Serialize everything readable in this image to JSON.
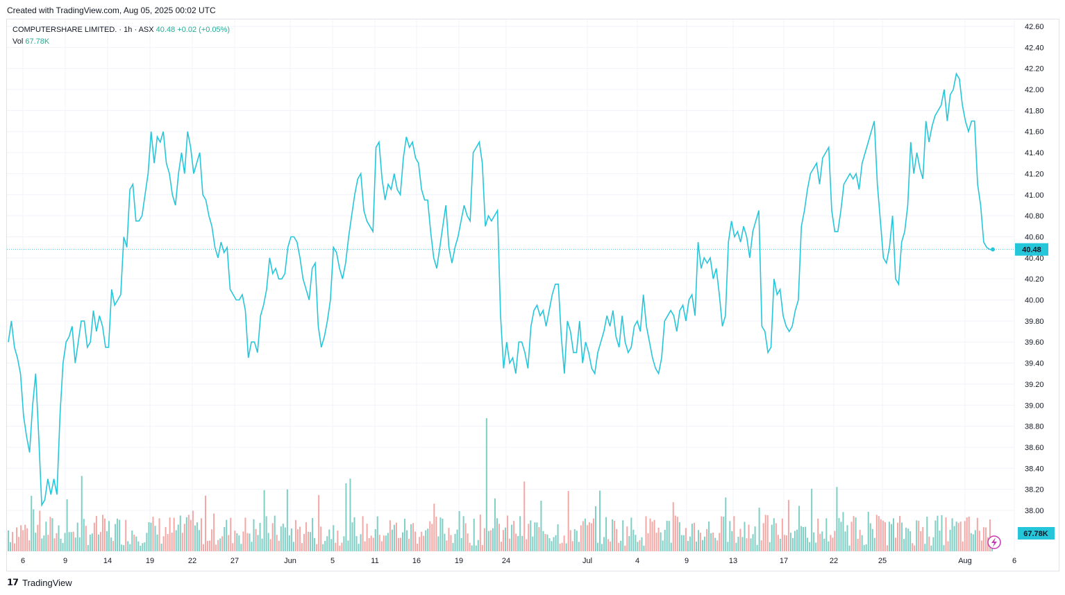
{
  "header": {
    "created_text": "Created with TradingView.com, Aug 05, 2025 00:02 UTC"
  },
  "legend": {
    "symbol": "COMPUTERSHARE LIMITED.",
    "interval": "1h",
    "exchange": "ASX",
    "price": "40.48",
    "change": "+0.02 (+0.05%)",
    "vol_label": "Vol",
    "vol_value": "67.78K"
  },
  "footer": {
    "brand": "TradingView"
  },
  "colors": {
    "line": "#26c6da",
    "up_vol": "#7fcfc5",
    "down_vol": "#f4a8a6",
    "grid": "#f0f3fa",
    "price_tag": "#26c6da"
  },
  "chart_data": {
    "type": "line",
    "title": "COMPUTERSHARE LIMITED. · 1h · ASX",
    "x_ticks": [
      "6",
      "9",
      "14",
      "19",
      "22",
      "27",
      "Jun",
      "5",
      "11",
      "16",
      "19",
      "24",
      "Jul",
      "4",
      "9",
      "13",
      "17",
      "22",
      "25",
      "Aug",
      "6"
    ],
    "y_ticks": [
      "42.60",
      "42.40",
      "42.20",
      "42.00",
      "41.80",
      "41.60",
      "41.40",
      "41.20",
      "41.00",
      "40.80",
      "40.60",
      "40.40",
      "40.20",
      "40.00",
      "39.80",
      "39.60",
      "39.40",
      "39.20",
      "39.00",
      "38.80",
      "38.60",
      "38.40",
      "38.20",
      "38.00"
    ],
    "ylim": [
      37.95,
      42.65
    ],
    "last_price": 40.48,
    "last_price_label": "40.48",
    "last_volume_label": "67.78K",
    "series": [
      {
        "values": [
          39.6,
          39.8,
          39.55,
          39.45,
          39.3,
          38.9,
          38.7,
          38.55,
          39.0,
          39.3,
          38.7,
          38.05,
          38.1,
          38.3,
          38.15,
          38.3,
          38.15,
          38.9,
          39.4,
          39.6,
          39.65,
          39.75,
          39.4,
          39.6,
          39.8,
          39.8,
          39.55,
          39.6,
          39.9,
          39.7,
          39.85,
          39.75,
          39.55,
          39.55,
          40.1,
          39.95,
          40.0,
          40.05,
          40.6,
          40.5,
          41.05,
          41.1,
          40.75,
          40.75,
          40.8,
          41.0,
          41.2,
          41.6,
          41.3,
          41.55,
          41.5,
          41.6,
          41.3,
          41.2,
          41.0,
          40.9,
          41.2,
          41.4,
          41.2,
          41.6,
          41.45,
          41.2,
          41.3,
          41.4,
          41.0,
          40.95,
          40.8,
          40.7,
          40.5,
          40.4,
          40.55,
          40.45,
          40.5,
          40.1,
          40.05,
          40.0,
          40.0,
          40.05,
          39.9,
          39.45,
          39.6,
          39.6,
          39.5,
          39.85,
          39.95,
          40.1,
          40.4,
          40.25,
          40.3,
          40.2,
          40.2,
          40.25,
          40.5,
          40.6,
          40.6,
          40.55,
          40.4,
          40.2,
          40.1,
          40.0,
          40.3,
          40.35,
          39.75,
          39.55,
          39.65,
          39.8,
          40.0,
          40.5,
          40.45,
          40.3,
          40.2,
          40.35,
          40.6,
          40.8,
          41.0,
          41.15,
          41.2,
          40.85,
          40.75,
          40.7,
          40.65,
          41.45,
          41.5,
          41.15,
          40.95,
          41.1,
          41.05,
          41.2,
          41.05,
          41.0,
          41.35,
          41.55,
          41.45,
          41.5,
          41.35,
          41.3,
          41.05,
          40.95,
          40.95,
          40.65,
          40.4,
          40.3,
          40.5,
          40.7,
          40.9,
          40.5,
          40.35,
          40.5,
          40.6,
          40.75,
          40.9,
          40.8,
          40.75,
          41.4,
          41.45,
          41.5,
          41.3,
          40.7,
          40.8,
          40.75,
          40.8,
          40.85,
          39.85,
          39.35,
          39.6,
          39.4,
          39.45,
          39.3,
          39.6,
          39.6,
          39.5,
          39.35,
          39.75,
          39.9,
          39.95,
          39.85,
          39.9,
          39.75,
          39.9,
          40.05,
          40.15,
          40.15,
          39.65,
          39.3,
          39.8,
          39.7,
          39.5,
          39.5,
          39.8,
          39.4,
          39.6,
          39.5,
          39.35,
          39.3,
          39.5,
          39.6,
          39.7,
          39.85,
          39.75,
          39.9,
          39.65,
          39.55,
          39.85,
          39.6,
          39.5,
          39.55,
          39.75,
          39.8,
          39.7,
          40.05,
          39.75,
          39.6,
          39.45,
          39.35,
          39.3,
          39.45,
          39.8,
          39.85,
          39.9,
          39.85,
          39.7,
          39.9,
          39.95,
          39.8,
          40.0,
          40.05,
          39.85,
          40.55,
          40.3,
          40.4,
          40.35,
          40.4,
          40.2,
          40.3,
          40.05,
          39.75,
          39.85,
          40.55,
          40.75,
          40.6,
          40.65,
          40.55,
          40.7,
          40.6,
          40.4,
          40.65,
          40.75,
          40.85,
          39.75,
          39.7,
          39.5,
          39.55,
          40.2,
          40.05,
          40.1,
          39.85,
          39.75,
          39.7,
          39.75,
          39.9,
          40.0,
          40.7,
          40.85,
          41.05,
          41.2,
          41.25,
          41.3,
          41.1,
          41.35,
          41.4,
          41.45,
          40.85,
          40.65,
          40.65,
          40.85,
          41.1,
          41.15,
          41.2,
          41.15,
          41.2,
          41.05,
          41.3,
          41.4,
          41.5,
          41.6,
          41.7,
          41.1,
          40.75,
          40.4,
          40.35,
          40.5,
          40.8,
          40.2,
          40.15,
          40.55,
          40.65,
          40.9,
          41.5,
          41.2,
          41.4,
          41.25,
          41.15,
          41.7,
          41.5,
          41.65,
          41.75,
          41.8,
          41.85,
          42.0,
          41.7,
          41.95,
          42.0,
          42.15,
          42.1,
          41.85,
          41.7,
          41.6,
          41.7,
          41.7,
          41.1,
          40.9,
          40.55,
          40.5,
          40.48,
          40.48
        ]
      }
    ]
  }
}
